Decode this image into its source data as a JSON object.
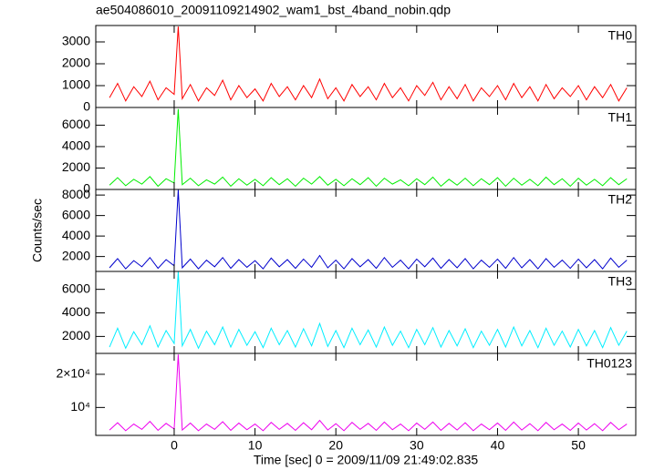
{
  "chart_data": {
    "type": "line",
    "title": "ae504086010_20091109214902_wam1_bst_4band_nobin.qdp",
    "xlabel": "Time [sec] 0 = 2009/11/09 21:49:02.835",
    "ylabel": "Counts/sec",
    "xlim": [
      -9.7,
      57.1
    ],
    "xticks": [
      0,
      10,
      20,
      30,
      40,
      50
    ],
    "x": [
      -8,
      -7,
      -6,
      -5,
      -4,
      -3,
      -2,
      -1,
      0,
      0.5,
      1,
      2,
      3,
      4,
      5,
      6,
      7,
      8,
      9,
      10,
      11,
      12,
      13,
      14,
      15,
      16,
      17,
      18,
      19,
      20,
      21,
      22,
      23,
      24,
      25,
      26,
      27,
      28,
      29,
      30,
      31,
      32,
      33,
      34,
      35,
      36,
      37,
      38,
      39,
      40,
      41,
      42,
      43,
      44,
      45,
      46,
      47,
      48,
      49,
      50,
      51,
      52,
      53,
      54,
      55,
      56
    ],
    "panels": [
      {
        "name": "TH0",
        "color": "#ff0000",
        "ylim": [
          0,
          3750
        ],
        "yticks": [
          0,
          1000,
          2000,
          3000
        ],
        "values": [
          450,
          1100,
          300,
          950,
          500,
          1200,
          350,
          900,
          600,
          3700,
          400,
          1050,
          300,
          900,
          550,
          1250,
          350,
          1000,
          450,
          850,
          300,
          1100,
          500,
          950,
          350,
          1000,
          450,
          1300,
          400,
          900,
          300,
          1050,
          500,
          950,
          350,
          1100,
          450,
          900,
          300,
          1000,
          550,
          1150,
          350,
          950,
          400,
          1050,
          300,
          900,
          500,
          1000,
          350,
          1100,
          450,
          950,
          300,
          1050,
          400,
          900,
          500,
          1000,
          350,
          950,
          450,
          1050,
          300,
          900
        ]
      },
      {
        "name": "TH1",
        "color": "#00ee00",
        "ylim": [
          0,
          7650
        ],
        "yticks": [
          0,
          2000,
          4000,
          6000
        ],
        "values": [
          400,
          1100,
          350,
          950,
          500,
          1200,
          300,
          1000,
          600,
          7500,
          450,
          1050,
          350,
          900,
          500,
          1150,
          300,
          1000,
          400,
          950,
          350,
          1100,
          450,
          1000,
          300,
          1050,
          500,
          1200,
          400,
          950,
          350,
          1000,
          450,
          1100,
          300,
          1050,
          500,
          900,
          350,
          1000,
          450,
          1150,
          300,
          950,
          400,
          1050,
          350,
          1000,
          450,
          1100,
          300,
          1050,
          400,
          950,
          350,
          1150,
          450,
          1000,
          300,
          1050,
          400,
          950,
          350,
          1100,
          450,
          1000
        ]
      },
      {
        "name": "TH2",
        "color": "#0000cc",
        "ylim": [
          545,
          8545
        ],
        "yticks": [
          2000,
          4000,
          6000,
          8000
        ],
        "values": [
          900,
          1800,
          800,
          1600,
          1000,
          1900,
          850,
          1700,
          1100,
          8500,
          900,
          1750,
          800,
          1650,
          1000,
          1900,
          850,
          1700,
          950,
          1600,
          800,
          1850,
          1000,
          1700,
          850,
          1750,
          950,
          2100,
          900,
          1650,
          800,
          1800,
          1000,
          1700,
          850,
          1900,
          950,
          1650,
          800,
          1750,
          1000,
          1850,
          850,
          1700,
          900,
          1800,
          800,
          1650,
          950,
          1750,
          850,
          1900,
          900,
          1700,
          800,
          1800,
          950,
          1650,
          850,
          1750,
          900,
          1700,
          800,
          1850,
          950,
          1650
        ]
      },
      {
        "name": "TH3",
        "color": "#00eeff",
        "ylim": [
          560,
          7520
        ],
        "yticks": [
          2000,
          4000,
          6000
        ],
        "values": [
          1100,
          2700,
          1000,
          2400,
          1300,
          2900,
          1100,
          2500,
          1400,
          7500,
          1200,
          2600,
          1000,
          2450,
          1300,
          2800,
          1100,
          2600,
          1250,
          2400,
          1050,
          2700,
          1300,
          2500,
          1100,
          2650,
          1200,
          3100,
          1150,
          2500,
          1050,
          2700,
          1300,
          2550,
          1100,
          2800,
          1250,
          2450,
          1050,
          2600,
          1300,
          2750,
          1100,
          2500,
          1200,
          2650,
          1050,
          2450,
          1250,
          2600,
          1100,
          2800,
          1200,
          2500,
          1050,
          2700,
          1250,
          2450,
          1100,
          2600,
          1200,
          2500,
          1050,
          2750,
          1250,
          2450
        ]
      },
      {
        "name": "TH0123",
        "color": "#ee00ee",
        "ylim": [
          1580,
          26300
        ],
        "yticks": [
          {
            "value": 10000,
            "label": "10⁴"
          },
          {
            "value": 20000,
            "label": "2×10⁴"
          }
        ],
        "values": [
          3200,
          5400,
          3000,
          5000,
          3400,
          5800,
          3100,
          5200,
          3500,
          26000,
          3200,
          5300,
          3000,
          5000,
          3400,
          5700,
          3100,
          5300,
          3300,
          5000,
          3000,
          5500,
          3400,
          5200,
          3100,
          5400,
          3300,
          6100,
          3200,
          5100,
          3000,
          5500,
          3400,
          5200,
          3100,
          5600,
          3300,
          5000,
          3000,
          5300,
          3400,
          5600,
          3100,
          5200,
          3200,
          5400,
          3000,
          5000,
          3300,
          5300,
          3100,
          5600,
          3200,
          5100,
          3000,
          5500,
          3300,
          5000,
          3100,
          5300,
          3200,
          5100,
          3000,
          5500,
          3300,
          5000
        ]
      }
    ]
  }
}
